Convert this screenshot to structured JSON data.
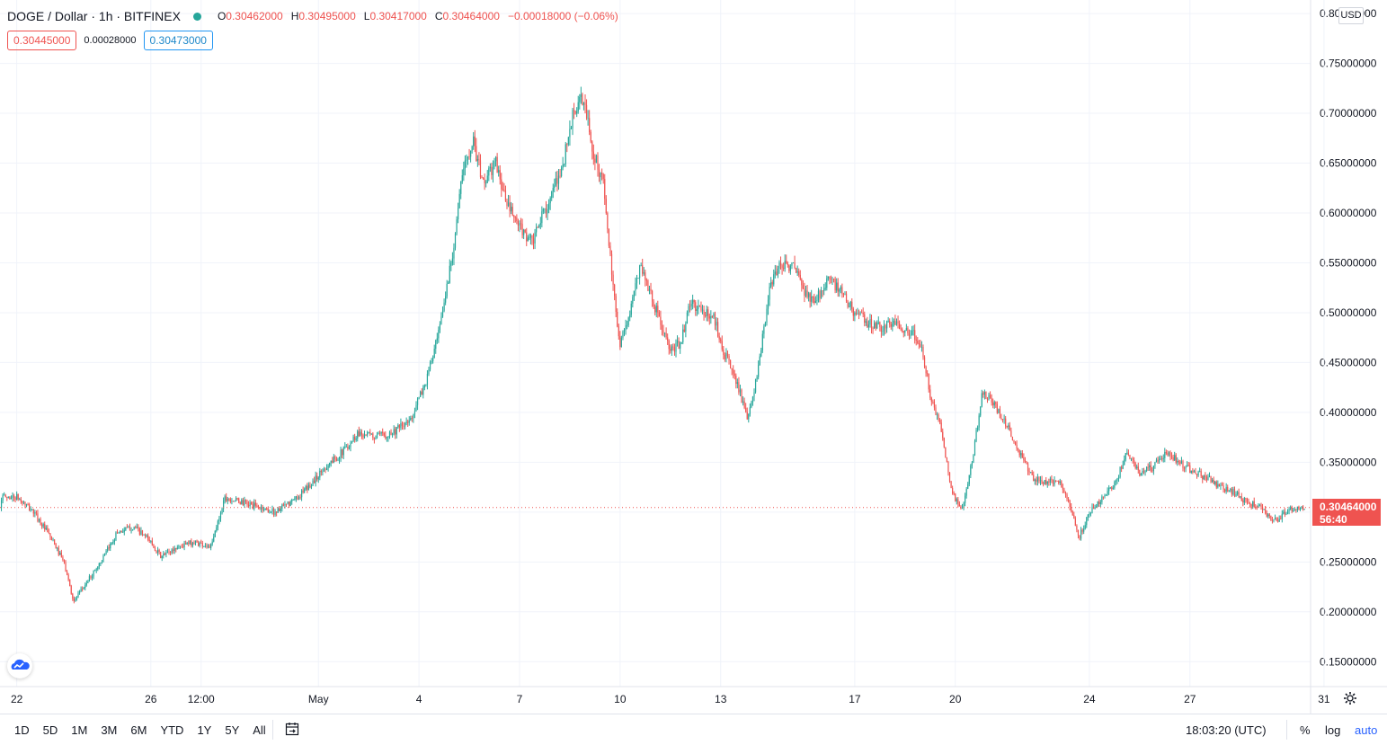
{
  "legend": {
    "symbol": "DOGE / Dollar · 1h · BITFINEX",
    "open_key": "O",
    "open": "0.30462000",
    "high_key": "H",
    "high": "0.30495000",
    "low_key": "L",
    "low": "0.30417000",
    "close_key": "C",
    "close": "0.30464000",
    "change": "−0.00018000 (−0.06%)"
  },
  "quote": {
    "bid": "0.30445000",
    "spread": "0.00028000",
    "ask": "0.30473000"
  },
  "price_axis": {
    "currency": "USD",
    "current_price": "0.30464000",
    "countdown": "56:40"
  },
  "bottom_bar": {
    "ranges": [
      "1D",
      "5D",
      "1M",
      "3M",
      "6M",
      "YTD",
      "1Y",
      "5Y",
      "All"
    ],
    "clock": "18:03:20 (UTC)",
    "pct": "%",
    "log": "log",
    "auto": "auto"
  },
  "icons": {
    "calendar": "calendar-range-icon",
    "gear": "settings-gear-icon",
    "logo": "tradingview-cloud-logo-icon",
    "live_dot": "market-open-dot-icon"
  },
  "colors": {
    "up": "#26a69a",
    "down": "#ef5350",
    "grid": "#f0f3fa",
    "accent": "#2962ff"
  },
  "chart_data": {
    "type": "candlestick",
    "timeframe": "1h",
    "y_ticks": [
      "0.15000000",
      "0.20000000",
      "0.25000000",
      "0.30000000",
      "0.35000000",
      "0.40000000",
      "0.45000000",
      "0.50000000",
      "0.55000000",
      "0.60000000",
      "0.65000000",
      "0.70000000",
      "0.75000000",
      "0.80000000"
    ],
    "y_tick_values": [
      0.15,
      0.2,
      0.25,
      0.3,
      0.35,
      0.4,
      0.45,
      0.5,
      0.55,
      0.6,
      0.65,
      0.7,
      0.75,
      0.8
    ],
    "ylim": [
      0.125,
      0.81
    ],
    "x_ticks": [
      {
        "label": "22",
        "day": 0
      },
      {
        "label": "26",
        "day": 4
      },
      {
        "label": "12:00",
        "day": 5.5
      },
      {
        "label": "May",
        "day": 9
      },
      {
        "label": "4",
        "day": 12
      },
      {
        "label": "7",
        "day": 15
      },
      {
        "label": "10",
        "day": 18
      },
      {
        "label": "13",
        "day": 21
      },
      {
        "label": "17",
        "day": 25
      },
      {
        "label": "20",
        "day": 28
      },
      {
        "label": "24",
        "day": 32
      },
      {
        "label": "27",
        "day": 35
      },
      {
        "label": "31",
        "day": 39
      }
    ],
    "xlim": [
      -0.5,
      38.6
    ],
    "current_price": 0.30464,
    "price_path_day_close": [
      [
        0,
        0.315
      ],
      [
        0.5,
        0.3
      ],
      [
        1,
        0.275
      ],
      [
        1.4,
        0.25
      ],
      [
        1.7,
        0.21
      ],
      [
        2.1,
        0.23
      ],
      [
        2.6,
        0.255
      ],
      [
        3,
        0.28
      ],
      [
        3.5,
        0.285
      ],
      [
        4,
        0.27
      ],
      [
        4.3,
        0.255
      ],
      [
        4.8,
        0.265
      ],
      [
        5.3,
        0.27
      ],
      [
        5.8,
        0.265
      ],
      [
        6.2,
        0.315
      ],
      [
        6.7,
        0.31
      ],
      [
        7.2,
        0.305
      ],
      [
        7.7,
        0.3
      ],
      [
        8.2,
        0.31
      ],
      [
        8.7,
        0.325
      ],
      [
        9.2,
        0.345
      ],
      [
        9.7,
        0.36
      ],
      [
        10.2,
        0.38
      ],
      [
        10.7,
        0.375
      ],
      [
        11.2,
        0.38
      ],
      [
        11.7,
        0.39
      ],
      [
        12.2,
        0.43
      ],
      [
        12.6,
        0.48
      ],
      [
        13,
        0.56
      ],
      [
        13.3,
        0.64
      ],
      [
        13.6,
        0.675
      ],
      [
        13.9,
        0.63
      ],
      [
        14.3,
        0.65
      ],
      [
        14.6,
        0.61
      ],
      [
        15,
        0.585
      ],
      [
        15.4,
        0.57
      ],
      [
        15.7,
        0.6
      ],
      [
        16,
        0.62
      ],
      [
        16.3,
        0.65
      ],
      [
        16.6,
        0.7
      ],
      [
        16.9,
        0.715
      ],
      [
        17.2,
        0.66
      ],
      [
        17.5,
        0.63
      ],
      [
        17.8,
        0.52
      ],
      [
        18,
        0.47
      ],
      [
        18.3,
        0.5
      ],
      [
        18.6,
        0.55
      ],
      [
        18.9,
        0.52
      ],
      [
        19.2,
        0.49
      ],
      [
        19.5,
        0.46
      ],
      [
        19.8,
        0.47
      ],
      [
        20.1,
        0.51
      ],
      [
        20.5,
        0.5
      ],
      [
        20.8,
        0.495
      ],
      [
        21.1,
        0.46
      ],
      [
        21.5,
        0.43
      ],
      [
        21.8,
        0.39
      ],
      [
        22.1,
        0.44
      ],
      [
        22.5,
        0.53
      ],
      [
        22.8,
        0.55
      ],
      [
        23.2,
        0.545
      ],
      [
        23.5,
        0.52
      ],
      [
        23.8,
        0.51
      ],
      [
        24.2,
        0.535
      ],
      [
        24.6,
        0.52
      ],
      [
        25,
        0.5
      ],
      [
        25.4,
        0.49
      ],
      [
        25.8,
        0.485
      ],
      [
        26.2,
        0.49
      ],
      [
        26.7,
        0.48
      ],
      [
        27,
        0.465
      ],
      [
        27.3,
        0.41
      ],
      [
        27.6,
        0.38
      ],
      [
        27.9,
        0.32
      ],
      [
        28.2,
        0.3
      ],
      [
        28.5,
        0.35
      ],
      [
        28.8,
        0.42
      ],
      [
        29.1,
        0.41
      ],
      [
        29.5,
        0.39
      ],
      [
        29.9,
        0.36
      ],
      [
        30.3,
        0.335
      ],
      [
        30.7,
        0.33
      ],
      [
        31.1,
        0.33
      ],
      [
        31.4,
        0.31
      ],
      [
        31.7,
        0.275
      ],
      [
        32,
        0.3
      ],
      [
        32.4,
        0.315
      ],
      [
        32.8,
        0.33
      ],
      [
        33.1,
        0.36
      ],
      [
        33.5,
        0.34
      ],
      [
        33.9,
        0.345
      ],
      [
        34.3,
        0.36
      ],
      [
        34.7,
        0.35
      ],
      [
        35.1,
        0.34
      ],
      [
        35.5,
        0.335
      ],
      [
        35.9,
        0.325
      ],
      [
        36.3,
        0.32
      ],
      [
        36.7,
        0.31
      ],
      [
        37.1,
        0.305
      ],
      [
        37.5,
        0.29
      ],
      [
        37.9,
        0.3
      ],
      [
        38.2,
        0.305
      ],
      [
        38.45,
        0.3046
      ]
    ]
  }
}
